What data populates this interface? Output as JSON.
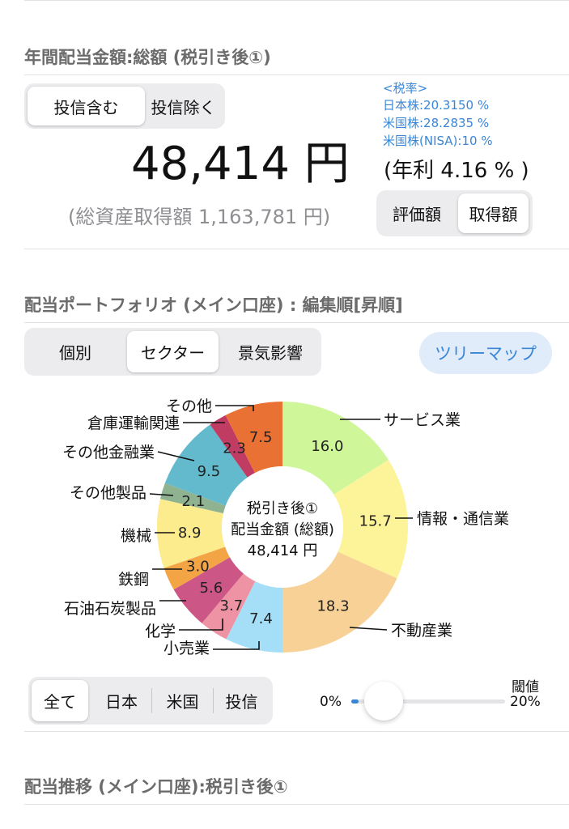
{
  "annual": {
    "title": "年間配当金額:総額 (税引き後①)",
    "toggle": {
      "options": [
        "投信含む",
        "投信除く"
      ],
      "selected": 0
    },
    "tax": {
      "header": "<税率>",
      "rates": [
        "日本株:20.3150 %",
        "米国株:28.2835 %",
        "米国株(NISA):10 %"
      ]
    },
    "amount": "48,414 円",
    "yield": "(年利 4.16 % )",
    "total_cost": "(総資産取得額 1,163,781 円)",
    "basis_toggle": {
      "options": [
        "評価額",
        "取得額"
      ],
      "selected": 1
    }
  },
  "portfolio": {
    "title": "配当ポートフォリオ (メイン口座) : 編集順[昇順]",
    "view_toggle": {
      "options": [
        "個別",
        "セクター",
        "景気影響"
      ],
      "selected": 1
    },
    "treemap_button": "ツリーマップ",
    "center": {
      "line1": "税引き後①",
      "line2": "配当金額 (総額)",
      "line3": "48,414 円"
    },
    "region_toggle": {
      "options": [
        "全て",
        "日本",
        "米国",
        "投信"
      ],
      "selected": 0
    },
    "threshold": {
      "label": "閾値",
      "min": "0%",
      "max": "20%",
      "value_percent": 0.9
    }
  },
  "chart_data": {
    "type": "pie",
    "donut": true,
    "slices": [
      {
        "label": "サービス業",
        "value": 16.0,
        "display": "16.0",
        "color": "#cff79a"
      },
      {
        "label": "情報・通信業",
        "value": 15.7,
        "display": "15.7",
        "color": "#fdf399"
      },
      {
        "label": "不動産業",
        "value": 18.3,
        "display": "18.3",
        "color": "#f7d196"
      },
      {
        "label": "小売業",
        "value": 7.4,
        "display": "7.4",
        "color": "#a5dff7"
      },
      {
        "label": "化学",
        "value": 3.7,
        "display": "3.7",
        "color": "#ee93a3"
      },
      {
        "label": "石油石炭製品",
        "value": 5.6,
        "display": "5.6",
        "color": "#cc5787"
      },
      {
        "label": "鉄鋼",
        "value": 3.0,
        "display": "3.0",
        "color": "#f3a545"
      },
      {
        "label": "機械",
        "value": 8.9,
        "display": "8.9",
        "color": "#fcec8e"
      },
      {
        "label": "その他製品",
        "value": 2.1,
        "display": "2.1",
        "color": "#8fb391"
      },
      {
        "label": "その他金融業",
        "value": 9.5,
        "display": "9.5",
        "color": "#64bacd"
      },
      {
        "label": "倉庫運輸関連",
        "value": 2.3,
        "display": "2.3",
        "color": "#c03c62"
      },
      {
        "label": "その他",
        "value": 7.5,
        "display": "7.5",
        "color": "#ea7134"
      }
    ]
  },
  "next_section": {
    "title": "配当推移 (メイン口座):税引き後①"
  }
}
